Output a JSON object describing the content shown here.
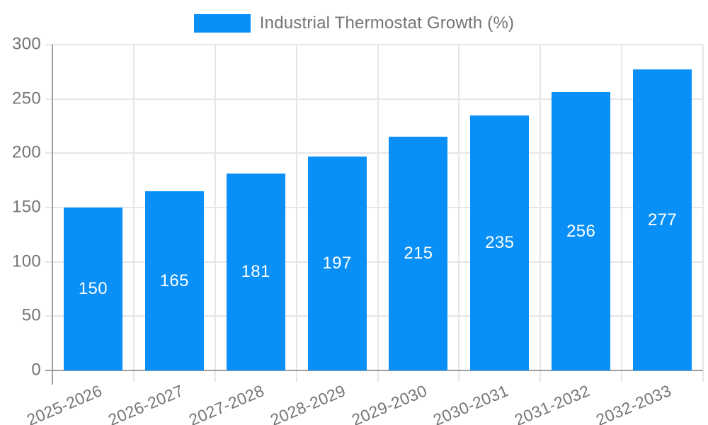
{
  "legend": {
    "label": "Industrial Thermostat Growth (%)"
  },
  "chart_data": {
    "type": "bar",
    "title": "Industrial Thermostat Growth (%)",
    "categories": [
      "2025-2026",
      "2026-2027",
      "2027-2028",
      "2028-2029",
      "2029-2030",
      "2030-2031",
      "2031-2032",
      "2032-2033"
    ],
    "values": [
      150,
      165,
      181,
      197,
      215,
      235,
      256,
      277
    ],
    "xlabel": "",
    "ylabel": "",
    "ylim": [
      0,
      300
    ],
    "yticks": [
      0,
      50,
      100,
      150,
      200,
      250,
      300
    ],
    "grid": true,
    "legend_position": "top-center",
    "colors": {
      "bar": "#0890F8",
      "bar_label": "#FFFFFF",
      "axis": "#9E9E9E",
      "grid": "#E6E6E6",
      "tick_label": "#757575"
    }
  }
}
